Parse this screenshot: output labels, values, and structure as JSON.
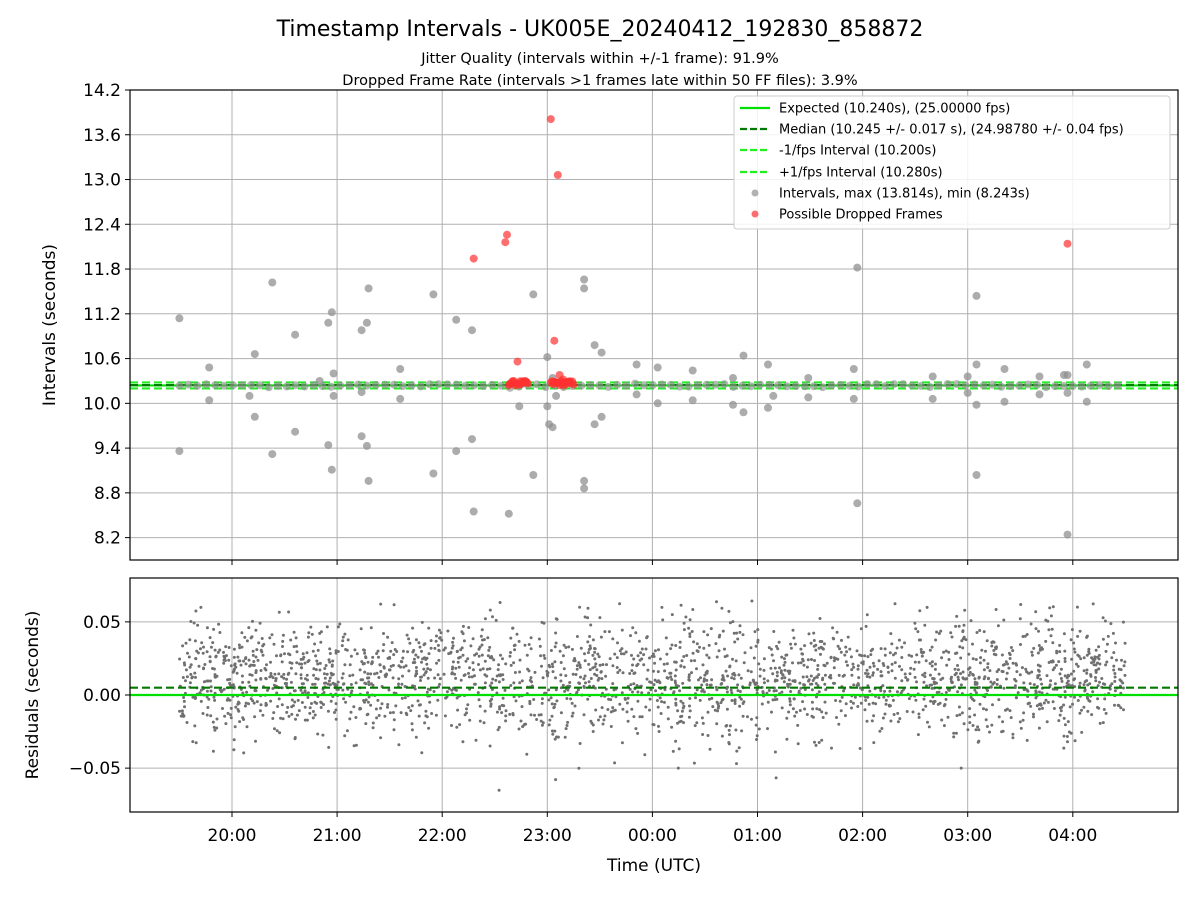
{
  "title": "Timestamp Intervals - UK005E_20240412_192830_858872",
  "subtitle_1": "Jitter Quality (intervals within +/-1 frame): 91.9%",
  "subtitle_2": "Dropped Frame Rate (intervals >1 frames late within 50 FF files): 3.9%",
  "colors": {
    "expected": "#00e000",
    "median": "#007a00",
    "fps_interval": "#22ee22",
    "intervals": "#909090",
    "dropped": "#ff3030",
    "residuals": "#707070",
    "grid": "#b0b0b0"
  },
  "chart_data": [
    {
      "type": "scatter",
      "panel": "top",
      "xlabel": "",
      "ylabel": "Intervals (seconds)",
      "x_range_hours": [
        19.0,
        5.0
      ],
      "ylim": [
        7.9,
        14.2
      ],
      "y_ticks": [
        "8.2",
        "8.8",
        "9.4",
        "10.0",
        "10.6",
        "11.2",
        "11.8",
        "12.4",
        "13.0",
        "13.6",
        "14.2"
      ],
      "grid": true,
      "legend_position": "top-right",
      "legend": [
        {
          "label": "Expected (10.240s), (25.00000 fps)",
          "style": "solid",
          "color": "#00e000"
        },
        {
          "label": "Median (10.245 +/- 0.017 s), (24.98780 +/- 0.04 fps)",
          "style": "dashed",
          "color": "#007a00"
        },
        {
          "label": "-1/fps Interval (10.200s)",
          "style": "dashed",
          "color": "#22ee22"
        },
        {
          "label": "+1/fps Interval (10.280s)",
          "style": "dashed",
          "color": "#22ee22"
        },
        {
          "label": "Intervals, max (13.814s), min (8.243s)",
          "style": "marker",
          "color": "#909090"
        },
        {
          "label": "Possible Dropped Frames",
          "style": "marker",
          "color": "#ff3030"
        }
      ],
      "lines": {
        "expected": 10.24,
        "median": 10.245,
        "lower": 10.2,
        "upper": 10.28
      },
      "intervals_baseline": {
        "x_start": "19:30",
        "x_end": "04:30",
        "value": 10.24
      },
      "intervals_outliers": [
        {
          "x": "19:30",
          "y": 11.14
        },
        {
          "x": "19:30",
          "y": 9.36
        },
        {
          "x": "19:47",
          "y": 10.48
        },
        {
          "x": "19:47",
          "y": 10.04
        },
        {
          "x": "20:13",
          "y": 10.66
        },
        {
          "x": "20:13",
          "y": 9.82
        },
        {
          "x": "20:10",
          "y": 10.1
        },
        {
          "x": "20:23",
          "y": 11.62
        },
        {
          "x": "20:23",
          "y": 9.32
        },
        {
          "x": "20:36",
          "y": 10.92
        },
        {
          "x": "20:36",
          "y": 9.62
        },
        {
          "x": "20:50",
          "y": 10.3
        },
        {
          "x": "20:55",
          "y": 11.08
        },
        {
          "x": "20:55",
          "y": 9.44
        },
        {
          "x": "20:57",
          "y": 11.22
        },
        {
          "x": "20:57",
          "y": 9.11
        },
        {
          "x": "20:58",
          "y": 10.4
        },
        {
          "x": "20:58",
          "y": 10.1
        },
        {
          "x": "21:14",
          "y": 10.98
        },
        {
          "x": "21:17",
          "y": 11.08
        },
        {
          "x": "21:14",
          "y": 9.56
        },
        {
          "x": "21:17",
          "y": 9.43
        },
        {
          "x": "21:18",
          "y": 11.54
        },
        {
          "x": "21:18",
          "y": 8.96
        },
        {
          "x": "21:14",
          "y": 10.15
        },
        {
          "x": "21:36",
          "y": 10.46
        },
        {
          "x": "21:36",
          "y": 10.06
        },
        {
          "x": "21:55",
          "y": 11.46
        },
        {
          "x": "21:55",
          "y": 9.06
        },
        {
          "x": "22:08",
          "y": 11.12
        },
        {
          "x": "22:08",
          "y": 9.36
        },
        {
          "x": "22:17",
          "y": 10.98
        },
        {
          "x": "22:17",
          "y": 9.52
        },
        {
          "x": "22:18",
          "y": 8.55
        },
        {
          "x": "22:38",
          "y": 8.52
        },
        {
          "x": "22:44",
          "y": 9.96
        },
        {
          "x": "22:52",
          "y": 11.46
        },
        {
          "x": "22:52",
          "y": 9.04
        },
        {
          "x": "23:00",
          "y": 10.62
        },
        {
          "x": "23:00",
          "y": 9.96
        },
        {
          "x": "23:01",
          "y": 9.72
        },
        {
          "x": "23:03",
          "y": 9.68
        },
        {
          "x": "23:03",
          "y": 10.34
        },
        {
          "x": "23:05",
          "y": 10.1
        },
        {
          "x": "23:21",
          "y": 11.66
        },
        {
          "x": "23:21",
          "y": 11.54
        },
        {
          "x": "23:21",
          "y": 8.96
        },
        {
          "x": "23:21",
          "y": 8.86
        },
        {
          "x": "23:27",
          "y": 10.78
        },
        {
          "x": "23:27",
          "y": 9.72
        },
        {
          "x": "23:31",
          "y": 10.68
        },
        {
          "x": "23:31",
          "y": 9.82
        },
        {
          "x": "23:51",
          "y": 10.52
        },
        {
          "x": "23:51",
          "y": 10.12
        },
        {
          "x": "00:03",
          "y": 10.48
        },
        {
          "x": "00:03",
          "y": 10.0
        },
        {
          "x": "00:23",
          "y": 10.44
        },
        {
          "x": "00:23",
          "y": 10.04
        },
        {
          "x": "00:46",
          "y": 10.34
        },
        {
          "x": "00:46",
          "y": 9.98
        },
        {
          "x": "00:52",
          "y": 10.64
        },
        {
          "x": "00:52",
          "y": 9.88
        },
        {
          "x": "01:06",
          "y": 10.52
        },
        {
          "x": "01:06",
          "y": 9.94
        },
        {
          "x": "01:09",
          "y": 10.1
        },
        {
          "x": "01:29",
          "y": 10.34
        },
        {
          "x": "01:29",
          "y": 10.08
        },
        {
          "x": "01:55",
          "y": 10.46
        },
        {
          "x": "01:55",
          "y": 10.06
        },
        {
          "x": "01:57",
          "y": 11.82
        },
        {
          "x": "01:57",
          "y": 8.66
        },
        {
          "x": "02:40",
          "y": 10.36
        },
        {
          "x": "02:40",
          "y": 10.06
        },
        {
          "x": "03:00",
          "y": 10.36
        },
        {
          "x": "03:00",
          "y": 10.14
        },
        {
          "x": "03:05",
          "y": 11.44
        },
        {
          "x": "03:05",
          "y": 9.04
        },
        {
          "x": "03:05",
          "y": 10.52
        },
        {
          "x": "03:05",
          "y": 9.98
        },
        {
          "x": "03:21",
          "y": 10.46
        },
        {
          "x": "03:21",
          "y": 10.02
        },
        {
          "x": "03:41",
          "y": 10.36
        },
        {
          "x": "03:41",
          "y": 10.12
        },
        {
          "x": "03:55",
          "y": 10.38
        },
        {
          "x": "03:57",
          "y": 10.38
        },
        {
          "x": "03:57",
          "y": 10.14
        },
        {
          "x": "03:57",
          "y": 8.24
        },
        {
          "x": "04:08",
          "y": 10.52
        },
        {
          "x": "04:08",
          "y": 10.02
        }
      ],
      "dropped_frames": [
        {
          "x": "22:18",
          "y": 11.94
        },
        {
          "x": "22:36",
          "y": 12.16
        },
        {
          "x": "22:37",
          "y": 12.26
        },
        {
          "x": "22:43",
          "y": 10.56
        },
        {
          "x": "23:02",
          "y": 13.81
        },
        {
          "x": "23:06",
          "y": 13.06
        },
        {
          "x": "23:04",
          "y": 10.84
        },
        {
          "x": "23:07",
          "y": 10.38
        },
        {
          "x": "23:09",
          "y": 10.32
        },
        {
          "x": "03:57",
          "y": 12.14
        }
      ],
      "dropped_cluster": [
        {
          "x_start": "22:38",
          "x_end": "22:49",
          "value": 10.27
        },
        {
          "x_start": "23:02",
          "x_end": "23:15",
          "value": 10.27
        }
      ]
    },
    {
      "type": "scatter",
      "panel": "bottom",
      "xlabel": "Time (UTC)",
      "ylabel": "Residuals (seconds)",
      "x_ticks": [
        "20:00",
        "21:00",
        "22:00",
        "23:00",
        "00:00",
        "01:00",
        "02:00",
        "03:00",
        "04:00"
      ],
      "ylim": [
        -0.08,
        0.08
      ],
      "y_ticks": [
        "−0.05",
        "0.00",
        "0.05"
      ],
      "grid": true,
      "lines": {
        "expected": 0.0,
        "median": 0.005
      },
      "residuals_summary": {
        "x_start": "19:30",
        "x_end": "04:30",
        "center": 0.01,
        "spread": 0.02,
        "min": -0.07,
        "max": 0.065
      }
    }
  ]
}
